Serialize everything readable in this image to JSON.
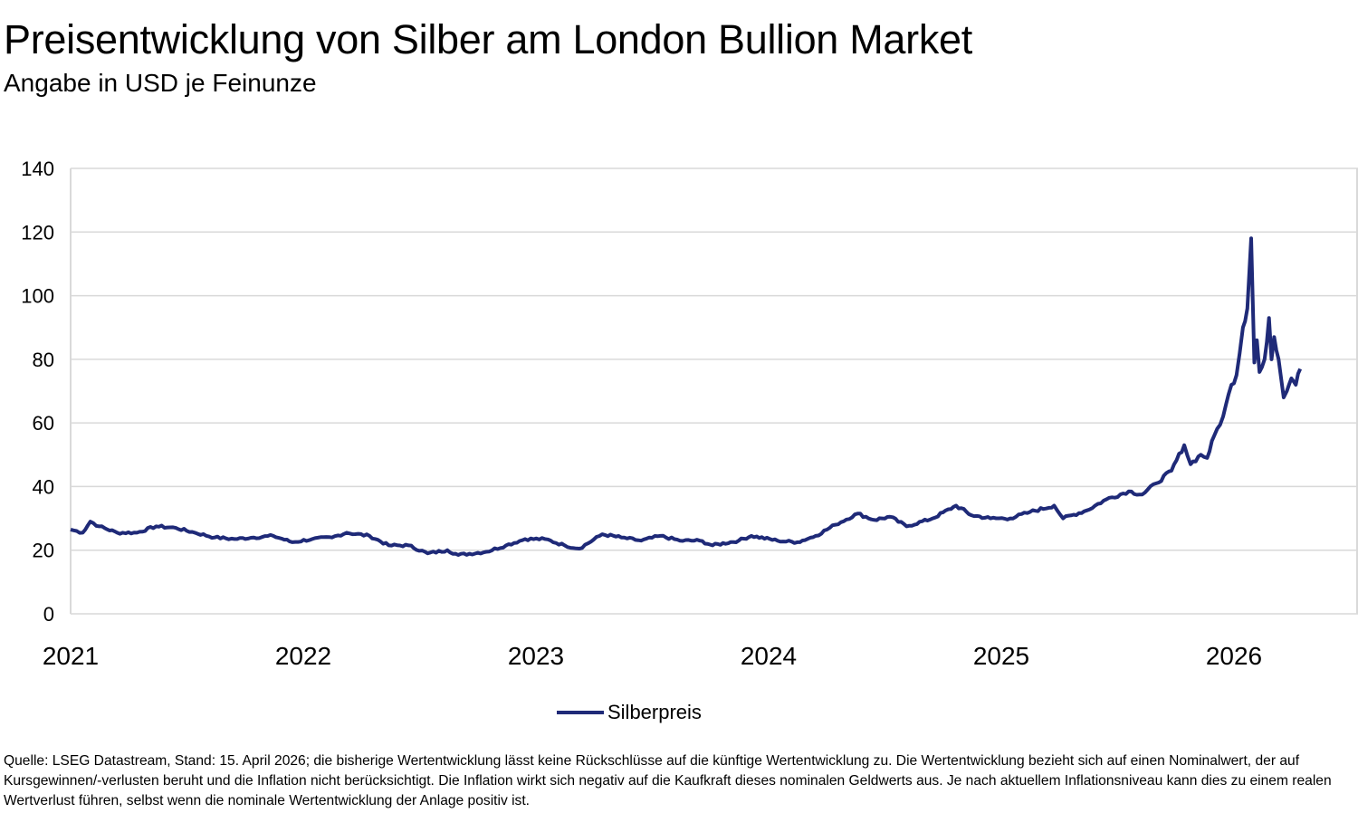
{
  "title": "Preisentwicklung von Silber am London Bullion Market",
  "subtitle": "Angabe in USD je Feinunze",
  "footer": "Quelle: LSEG Datastream, Stand: 15. April 2026; die bisherige Wertentwicklung lässt keine Rückschlüsse auf die künftige Wertentwicklung zu. Die Wertentwicklung bezieht sich auf einen Nominalwert, der auf Kursgewinnen/-verlusten beruht und die Inflation nicht berücksichtigt. Die Inflation wirkt sich negativ auf die Kaufkraft dieses nominalen Geldwerts aus. Je nach aktuellem Inflationsniveau kann dies zu einem realen Wertverlust führen, selbst wenn die nominale Wertentwicklung der Anlage positiv ist.",
  "chart_data": {
    "type": "line",
    "title": "Preisentwicklung von Silber am London Bullion Market",
    "subtitle": "Angabe in USD je Feinunze",
    "ylim": [
      0,
      140
    ],
    "yticks": [
      "0",
      "20",
      "40",
      "60",
      "80",
      "100",
      "120",
      "140"
    ],
    "xticks": [
      "2021",
      "2022",
      "2023",
      "2024",
      "2025",
      "2026"
    ],
    "grid": true,
    "legend_placement": "bottom",
    "colors": {
      "series": "#1f2a78",
      "grid": "#d9d9d9"
    },
    "series": [
      {
        "name": "Silberpreis",
        "points": [
          [
            "2021-01-01",
            26.5
          ],
          [
            "2021-01-20",
            25.5
          ],
          [
            "2021-02-01",
            29
          ],
          [
            "2021-02-15",
            27.5
          ],
          [
            "2021-03-15",
            25.5
          ],
          [
            "2021-04-15",
            25.5
          ],
          [
            "2021-05-15",
            27.5
          ],
          [
            "2021-06-15",
            27
          ],
          [
            "2021-07-15",
            25.5
          ],
          [
            "2021-08-15",
            24
          ],
          [
            "2021-09-15",
            23.5
          ],
          [
            "2021-10-15",
            24
          ],
          [
            "2021-11-15",
            24.5
          ],
          [
            "2021-12-15",
            22.5
          ],
          [
            "2022-01-15",
            23.5
          ],
          [
            "2022-02-15",
            24
          ],
          [
            "2022-03-10",
            25.5
          ],
          [
            "2022-04-15",
            24.5
          ],
          [
            "2022-05-15",
            21.5
          ],
          [
            "2022-06-15",
            21.5
          ],
          [
            "2022-07-15",
            19
          ],
          [
            "2022-08-15",
            20
          ],
          [
            "2022-09-01",
            18.5
          ],
          [
            "2022-10-15",
            19.5
          ],
          [
            "2022-11-15",
            21.5
          ],
          [
            "2022-12-15",
            23.5
          ],
          [
            "2023-01-15",
            23.5
          ],
          [
            "2023-02-15",
            21.5
          ],
          [
            "2023-03-10",
            20.5
          ],
          [
            "2023-04-15",
            25
          ],
          [
            "2023-05-15",
            24
          ],
          [
            "2023-06-15",
            23
          ],
          [
            "2023-07-15",
            24.5
          ],
          [
            "2023-08-15",
            23
          ],
          [
            "2023-09-15",
            23
          ],
          [
            "2023-10-05",
            21.5
          ],
          [
            "2023-11-15",
            23
          ],
          [
            "2023-12-05",
            24.5
          ],
          [
            "2024-01-15",
            23
          ],
          [
            "2024-02-15",
            22.5
          ],
          [
            "2024-03-15",
            24.5
          ],
          [
            "2024-04-15",
            28
          ],
          [
            "2024-05-20",
            31.5
          ],
          [
            "2024-06-15",
            29.5
          ],
          [
            "2024-07-10",
            30.5
          ],
          [
            "2024-08-05",
            27.5
          ],
          [
            "2024-09-15",
            30
          ],
          [
            "2024-10-22",
            34
          ],
          [
            "2024-11-15",
            31
          ],
          [
            "2024-12-15",
            30
          ],
          [
            "2025-01-15",
            30
          ],
          [
            "2025-02-15",
            32
          ],
          [
            "2025-03-25",
            34
          ],
          [
            "2025-04-08",
            30
          ],
          [
            "2025-05-15",
            32.5
          ],
          [
            "2025-06-15",
            36
          ],
          [
            "2025-07-20",
            38.5
          ],
          [
            "2025-08-10",
            37.5
          ],
          [
            "2025-09-01",
            41
          ],
          [
            "2025-09-25",
            45
          ],
          [
            "2025-10-15",
            53
          ],
          [
            "2025-10-25",
            47
          ],
          [
            "2025-11-10",
            50
          ],
          [
            "2025-11-20",
            49
          ],
          [
            "2025-12-01",
            56
          ],
          [
            "2025-12-15",
            62
          ],
          [
            "2025-12-28",
            72
          ],
          [
            "2026-01-05",
            75
          ],
          [
            "2026-01-15",
            90
          ],
          [
            "2026-01-22",
            96
          ],
          [
            "2026-01-28",
            118
          ],
          [
            "2026-02-02",
            79
          ],
          [
            "2026-02-06",
            86
          ],
          [
            "2026-02-10",
            76
          ],
          [
            "2026-02-18",
            80
          ],
          [
            "2026-02-25",
            93
          ],
          [
            "2026-03-01",
            80
          ],
          [
            "2026-03-05",
            87
          ],
          [
            "2026-03-12",
            80
          ],
          [
            "2026-03-20",
            68
          ],
          [
            "2026-03-25",
            70
          ],
          [
            "2026-04-01",
            74
          ],
          [
            "2026-04-08",
            72
          ],
          [
            "2026-04-15",
            77
          ]
        ]
      }
    ]
  }
}
